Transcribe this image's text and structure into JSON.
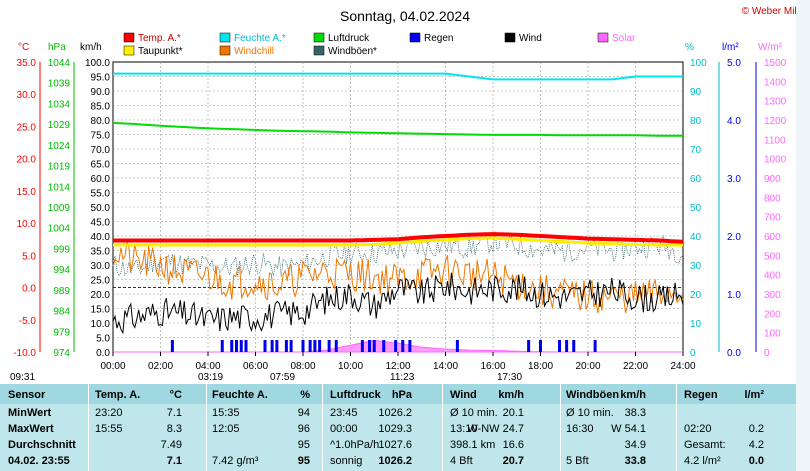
{
  "title": "Sonntag, 04.02.2024",
  "credit": "© Weber Mike",
  "legend": [
    {
      "label": "Temp. A.*",
      "color": "#ff0000"
    },
    {
      "label": "Feuchte A.*",
      "color": "#00e5ee"
    },
    {
      "label": "Luftdruck",
      "color": "#00dd00"
    },
    {
      "label": "Regen",
      "color": "#0000ee"
    },
    {
      "label": "Wind",
      "color": "#000000"
    },
    {
      "label": "Solar",
      "color": "#ff66ff"
    },
    {
      "label": "Taupunkt*",
      "color": "#ffee00"
    },
    {
      "label": "Windchill",
      "color": "#ee7700"
    },
    {
      "label": "Windböen*",
      "color": "#336666"
    }
  ],
  "axis_units": {
    "temp": "°C",
    "press": "hPa",
    "wind": "km/h",
    "hum": "%",
    "rain": "l/m²",
    "solar": "W/m²"
  },
  "chart_data": {
    "type": "line",
    "x_ticks": [
      "00:00",
      "02:00",
      "04:00",
      "06:00",
      "08:00",
      "10:00",
      "12:00",
      "14:00",
      "16:00",
      "18:00",
      "20:00",
      "22:00",
      "24:00"
    ],
    "y_wind": {
      "min": 0,
      "max": 100,
      "step": 5,
      "labels": [
        "0.0",
        "5.0",
        "10.0",
        "15.0",
        "20.0",
        "25.0",
        "30.0",
        "35.0",
        "40.0",
        "45.0",
        "50.0",
        "55.0",
        "60.0",
        "65.0",
        "70.0",
        "75.0",
        "80.0",
        "85.0",
        "90.0",
        "95.0",
        "100.0"
      ]
    },
    "y_temp": {
      "min": -10,
      "max": 35,
      "labels": [
        "-10.0",
        "-5.0",
        "0.0",
        "5.0",
        "10.0",
        "15.0",
        "20.0",
        "25.0",
        "30.0",
        "35.0"
      ]
    },
    "y_press": {
      "min": 974,
      "max": 1044,
      "labels": [
        "974",
        "979",
        "984",
        "989",
        "994",
        "999",
        "1004",
        "1009",
        "1014",
        "1019",
        "1024",
        "1029",
        "1034",
        "1039",
        "1044"
      ]
    },
    "y_hum": {
      "min": 0,
      "max": 100,
      "labels": [
        "0",
        "10",
        "20",
        "30",
        "40",
        "50",
        "60",
        "70",
        "80",
        "90",
        "100"
      ]
    },
    "y_rain": {
      "min": 0,
      "max": 5,
      "labels": [
        "0.0",
        "1.0",
        "2.0",
        "3.0",
        "4.0",
        "5.0"
      ]
    },
    "y_solar": {
      "min": 0,
      "max": 1500,
      "labels": [
        "0",
        "100",
        "200",
        "300",
        "400",
        "500",
        "600",
        "700",
        "800",
        "900",
        "1000",
        "1100",
        "1200",
        "1300",
        "1400",
        "1500"
      ]
    },
    "hours": [
      0,
      1,
      2,
      3,
      4,
      5,
      6,
      7,
      8,
      9,
      10,
      11,
      12,
      13,
      14,
      15,
      16,
      17,
      18,
      19,
      20,
      21,
      22,
      23,
      24
    ],
    "temp": [
      7.3,
      7.3,
      7.3,
      7.3,
      7.3,
      7.3,
      7.3,
      7.3,
      7.3,
      7.3,
      7.3,
      7.4,
      7.5,
      7.8,
      8.0,
      8.2,
      8.3,
      8.2,
      8.0,
      7.8,
      7.6,
      7.5,
      7.4,
      7.3,
      7.1
    ],
    "dewpoint": [
      6.6,
      6.6,
      6.6,
      6.6,
      6.6,
      6.6,
      6.6,
      6.6,
      6.6,
      6.6,
      6.6,
      6.7,
      6.9,
      7.2,
      7.4,
      7.6,
      7.7,
      7.5,
      7.3,
      7.1,
      6.9,
      6.8,
      6.7,
      6.6,
      6.6
    ],
    "humidity": [
      96,
      96,
      96,
      96,
      96,
      96,
      96,
      96,
      96,
      96,
      96,
      96,
      96,
      96,
      96,
      95,
      94,
      94,
      94,
      94,
      94,
      94,
      95,
      95,
      95
    ],
    "pressure": [
      1029.3,
      1029.0,
      1028.6,
      1028.3,
      1028.0,
      1027.8,
      1027.6,
      1027.4,
      1027.3,
      1027.2,
      1027.0,
      1026.9,
      1026.8,
      1026.7,
      1026.6,
      1026.5,
      1026.4,
      1026.4,
      1026.4,
      1026.3,
      1026.3,
      1026.3,
      1026.3,
      1026.2,
      1026.2
    ],
    "wind": [
      11,
      12,
      14,
      13,
      11,
      12,
      12,
      13,
      14,
      18,
      20,
      16,
      22,
      20,
      23,
      21,
      22,
      22,
      20,
      19,
      20,
      21,
      19,
      18,
      20
    ],
    "windchill": [
      35,
      31,
      30,
      27,
      26,
      24,
      25,
      23,
      26,
      28,
      27,
      26,
      25,
      27,
      28,
      27,
      26,
      24,
      21,
      20,
      19,
      19,
      19,
      20,
      21
    ],
    "gusts": [
      30,
      28,
      32,
      30,
      30,
      29,
      31,
      29,
      30,
      33,
      34,
      34,
      35,
      36,
      37,
      36,
      38,
      37,
      35,
      35,
      36,
      35,
      36,
      37,
      34
    ],
    "solar": [
      0,
      0,
      0,
      0,
      0,
      0,
      0,
      0,
      0,
      10,
      35,
      60,
      45,
      25,
      15,
      10,
      8,
      4,
      1,
      0,
      0,
      0,
      0,
      0,
      0
    ],
    "rain_marks": [
      2.5,
      4.6,
      5.0,
      5.2,
      5.4,
      5.6,
      6.4,
      6.7,
      6.9,
      7.3,
      7.5,
      8.0,
      8.3,
      8.5,
      8.7,
      9.1,
      9.4,
      10.5,
      10.8,
      11.0,
      11.4,
      11.9,
      12.2,
      12.5,
      14.5,
      17.5,
      18.0,
      18.8,
      19.1,
      19.4,
      20.3
    ]
  },
  "sun_times": {
    "night_start": "09:31",
    "sunrise": "03:19",
    "rise_clock": "07:59",
    "sunset_icon": "11:23",
    "sunset": "17:30"
  },
  "table": {
    "headers": [
      "Sensor",
      "Temp. A.",
      "°C",
      "Feuchte A.",
      "%",
      "Luftdruck",
      "hPa",
      "Wind",
      "km/h",
      "Windböen",
      "km/h",
      "Regen",
      "l/m²"
    ],
    "rows": [
      {
        "label": "MinWert",
        "cells": [
          "23:20",
          "7.1",
          "15:35",
          "94",
          "23:45",
          "1026.2",
          "Ø 10 min.",
          "20.1",
          "Ø 10 min.",
          "38.3",
          "",
          ""
        ]
      },
      {
        "label": "MaxWert",
        "cells": [
          "15:55",
          "8.3",
          "12:05",
          "96",
          "00:00",
          "1029.3",
          "13:10",
          "W-NW 24.7",
          "16:30",
          "W 54.1",
          "02:20",
          "0.2"
        ]
      },
      {
        "label": "Durchschnitt",
        "cells": [
          "",
          "7.49",
          "",
          "95",
          "^1.0hPa/h",
          "1027.6",
          "398.1 km",
          "16.6",
          "",
          "34.9",
          "Gesamt:",
          "4.2"
        ]
      },
      {
        "label": "04.02. 23:55",
        "cells": [
          "",
          "7.1",
          "7.42 g/m³",
          "95",
          "sonnig",
          "1026.2",
          "4 Bft",
          "20.7",
          "5 Bft",
          "33.8",
          "4.2 l/m²",
          "0.0"
        ]
      }
    ]
  }
}
